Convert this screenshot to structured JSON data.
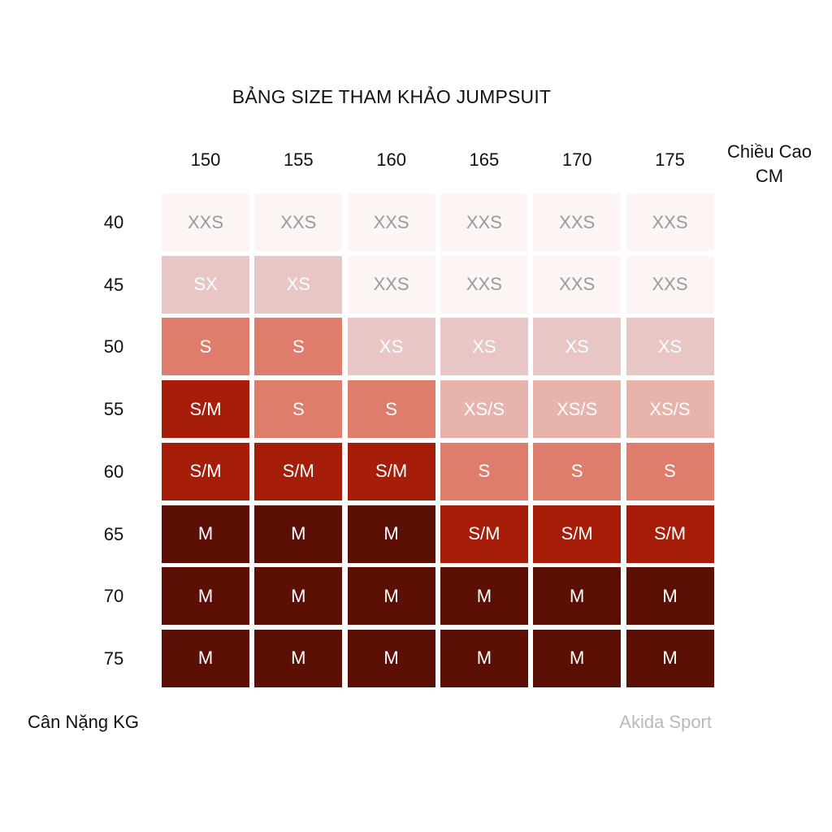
{
  "chart_data": {
    "type": "table",
    "title": "BẢNG SIZE THAM KHẢO JUMPSUIT",
    "column_axis_label": "Chiều Cao CM",
    "column_axis_label_lines": [
      "Chiều Cao",
      "CM"
    ],
    "row_axis_label": "Cân Nặng KG",
    "columns": [
      "150",
      "155",
      "160",
      "165",
      "170",
      "175"
    ],
    "rows": [
      "40",
      "45",
      "50",
      "55",
      "60",
      "65",
      "70",
      "75"
    ],
    "cells": [
      [
        "XXS",
        "XXS",
        "XXS",
        "XXS",
        "XXS",
        "XXS"
      ],
      [
        "SX",
        "XS",
        "XXS",
        "XXS",
        "XXS",
        "XXS"
      ],
      [
        "S",
        "S",
        "XS",
        "XS",
        "XS",
        "XS"
      ],
      [
        "S/M",
        "S",
        "S",
        "XS/S",
        "XS/S",
        "XS/S"
      ],
      [
        "S/M",
        "S/M",
        "S/M",
        "S",
        "S",
        "S"
      ],
      [
        "M",
        "M",
        "M",
        "S/M",
        "S/M",
        "S/M"
      ],
      [
        "M",
        "M",
        "M",
        "M",
        "M",
        "M"
      ],
      [
        "M",
        "M",
        "M",
        "M",
        "M",
        "M"
      ]
    ],
    "cell_colors": {
      "XXS": {
        "bg": "#fdf5f4",
        "fg": "#9a9a9a"
      },
      "SX": {
        "bg": "#e7c6c5",
        "fg": "#ffffff"
      },
      "XS": {
        "bg": "#e7c6c5",
        "fg": "#ffffff"
      },
      "XS/S": {
        "bg": "#e8b3aa",
        "fg": "#ffffff"
      },
      "S": {
        "bg": "#df7d6d",
        "fg": "#ffffff"
      },
      "S/M": {
        "bg": "#a61e0a",
        "fg": "#ffffff"
      },
      "M": {
        "bg": "#5c1005",
        "fg": "#ffffff"
      }
    }
  },
  "brand": "Akida Sport"
}
